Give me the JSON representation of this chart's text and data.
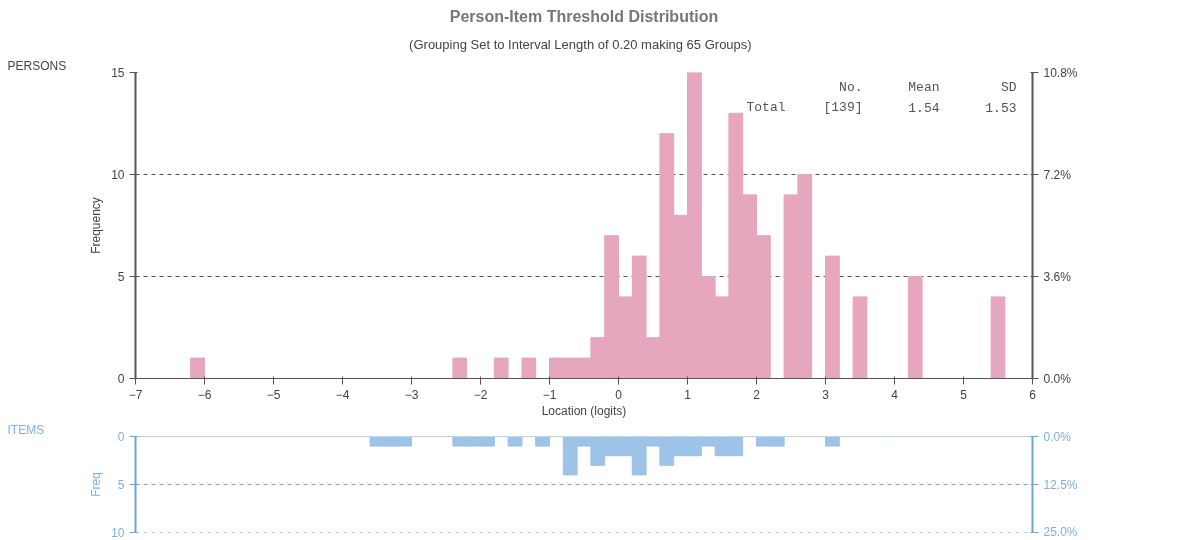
{
  "chart_data": [
    {
      "type": "histogram",
      "title": "Person-Item Threshold Distribution",
      "subtitle": "(Grouping Set to Interval Length of 0.20  making 65  Groups)",
      "xlabel": "Location (logits)",
      "ylabel": "Frequency",
      "annotations": [
        "PERSONS",
        "No.",
        "Mean",
        "SD",
        "Total",
        "[139]",
        "1.54",
        "1.53"
      ],
      "bins": [
        -7.0,
        -6.8,
        -6.6,
        -6.4,
        -6.2,
        -6.0,
        -5.8,
        -5.6,
        -5.4,
        -5.2,
        -5.0,
        -4.8,
        -4.6,
        -4.4,
        -4.2,
        -4.0,
        -3.8,
        -3.6,
        -3.4,
        -3.2,
        -3.0,
        -2.8,
        -2.6,
        -2.4,
        -2.2,
        -2.0,
        -1.8,
        -1.6,
        -1.4,
        -1.2,
        -1.0,
        -0.8,
        -0.6,
        -0.4,
        -0.2,
        0.0,
        0.2,
        0.4,
        0.6,
        0.8,
        1.0,
        1.2,
        1.4,
        1.6,
        1.8,
        2.0,
        2.2,
        2.4,
        2.6,
        2.8,
        3.0,
        3.2,
        3.4,
        3.6,
        3.8,
        4.0,
        4.2,
        4.4,
        4.6,
        4.8,
        5.0,
        5.2,
        5.4,
        5.6,
        5.8,
        6.0
      ],
      "values": [
        0,
        0,
        0,
        0,
        1,
        0,
        0,
        0,
        0,
        0,
        0,
        0,
        0,
        0,
        0,
        0,
        0,
        0,
        0,
        0,
        0,
        0,
        0,
        1,
        0,
        0,
        1,
        0,
        1,
        0,
        1,
        1,
        1,
        2,
        7,
        4,
        6,
        2,
        12,
        8,
        15,
        5,
        4,
        13,
        9,
        7,
        0,
        9,
        10,
        0,
        6,
        0,
        4,
        0,
        0,
        0,
        5,
        0,
        0,
        0,
        0,
        0,
        4,
        0,
        0
      ],
      "color": "#e6a6bd",
      "xlim": [
        -7,
        6
      ],
      "xticks": [
        -7,
        -6,
        -5,
        -4,
        -3,
        -2,
        -1,
        0,
        1,
        2,
        3,
        4,
        5,
        6
      ],
      "ylim": [
        0,
        15
      ],
      "yticks": [
        0,
        5,
        10,
        15
      ],
      "y2lim": [
        0,
        10.8
      ],
      "y2ticks": [
        {
          "value": 0,
          "label": "0.0%"
        },
        {
          "value": 3.6,
          "label": "3.6%"
        },
        {
          "value": 7.2,
          "label": "7.2%"
        },
        {
          "value": 10.8,
          "label": "10.8%"
        }
      ],
      "grid": "y"
    },
    {
      "type": "histogram",
      "ylabel": "Freq",
      "annotations": [
        "ITEMS"
      ],
      "bins": [
        -7.0,
        -6.8,
        -6.6,
        -6.4,
        -6.2,
        -6.0,
        -5.8,
        -5.6,
        -5.4,
        -5.2,
        -5.0,
        -4.8,
        -4.6,
        -4.4,
        -4.2,
        -4.0,
        -3.8,
        -3.6,
        -3.4,
        -3.2,
        -3.0,
        -2.8,
        -2.6,
        -2.4,
        -2.2,
        -2.0,
        -1.8,
        -1.6,
        -1.4,
        -1.2,
        -1.0,
        -0.8,
        -0.6,
        -0.4,
        -0.2,
        0.0,
        0.2,
        0.4,
        0.6,
        0.8,
        1.0,
        1.2,
        1.4,
        1.6,
        1.8,
        2.0,
        2.2,
        2.4,
        2.6,
        2.8,
        3.0,
        3.2,
        3.4,
        3.6,
        3.8,
        4.0,
        4.2,
        4.4,
        4.6,
        4.8,
        5.0,
        5.2,
        5.4,
        5.6,
        5.8,
        6.0
      ],
      "values": [
        0,
        0,
        0,
        0,
        0,
        0,
        0,
        0,
        0,
        0,
        0,
        0,
        0,
        0,
        0,
        0,
        0,
        1,
        1,
        1,
        0,
        0,
        0,
        1,
        1,
        1,
        0,
        1,
        0,
        1,
        0,
        4,
        1,
        3,
        2,
        2,
        4,
        1,
        3,
        2,
        2,
        1,
        2,
        2,
        0,
        1,
        1,
        0,
        0,
        0,
        1,
        0,
        0,
        0,
        0,
        0,
        0,
        0,
        0,
        0,
        0,
        0,
        0,
        0,
        0
      ],
      "color": "#9dc3e6",
      "xlim": [
        -7,
        6
      ],
      "xticks": [
        -7,
        -6,
        -5,
        -4,
        -3,
        -2,
        -1,
        0,
        1,
        2,
        3,
        4,
        5,
        6
      ],
      "ylim": [
        10,
        0
      ],
      "yticks": [
        0,
        5,
        10
      ],
      "y2lim": [
        25,
        0
      ],
      "y2ticks": [
        {
          "value": 0,
          "label": "0.0%"
        },
        {
          "value": 12.5,
          "label": "12.5%"
        },
        {
          "value": 25,
          "label": "25.0%"
        }
      ],
      "tick_labels": "y",
      "ref_lines": [
        {
          "axis": "y",
          "value": 5,
          "color": "#6fa3d8",
          "line_style": "dashed"
        },
        {
          "axis": "y",
          "value": 10,
          "color": "#6fa3d8",
          "line_style": "dashed"
        }
      ]
    }
  ]
}
